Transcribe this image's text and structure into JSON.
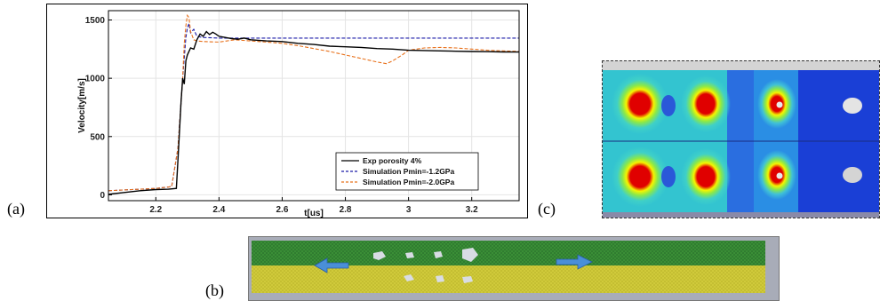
{
  "labels": {
    "a": "(a)",
    "b": "(b)",
    "c": "(c)"
  },
  "chart_data": {
    "type": "line",
    "xlabel": "t[us]",
    "ylabel": "Velocity[m/s]",
    "xlim": [
      2.05,
      3.35
    ],
    "ylim": [
      -50,
      1580
    ],
    "xticks": [
      2.2,
      2.4,
      2.6,
      2.8,
      3.0,
      3.2
    ],
    "xtick_labels": [
      "2.2",
      "2.4",
      "2.6",
      "2.8",
      "3",
      "3.2"
    ],
    "yticks": [
      0,
      500,
      1000,
      1500
    ],
    "ytick_labels": [
      "0",
      "500",
      "1000",
      "1500"
    ],
    "grid": true,
    "legend_position": "bottom-right",
    "series": [
      {
        "name": "Exp porosity 4%",
        "color": "#000000",
        "style": "solid",
        "x": [
          2.05,
          2.1,
          2.15,
          2.2,
          2.24,
          2.265,
          2.27,
          2.28,
          2.285,
          2.29,
          2.295,
          2.3,
          2.31,
          2.32,
          2.33,
          2.34,
          2.35,
          2.36,
          2.37,
          2.38,
          2.39,
          2.4,
          2.42,
          2.44,
          2.46,
          2.48,
          2.5,
          2.55,
          2.6,
          2.65,
          2.7,
          2.75,
          2.8,
          2.85,
          2.9,
          2.95,
          3.0,
          3.05,
          3.1,
          3.15,
          3.2,
          3.25,
          3.3,
          3.35
        ],
        "y": [
          5,
          20,
          35,
          45,
          48,
          55,
          300,
          800,
          1000,
          950,
          1150,
          1200,
          1260,
          1250,
          1330,
          1380,
          1360,
          1400,
          1375,
          1395,
          1380,
          1360,
          1350,
          1340,
          1335,
          1345,
          1330,
          1320,
          1315,
          1300,
          1290,
          1275,
          1270,
          1265,
          1255,
          1250,
          1240,
          1238,
          1235,
          1232,
          1230,
          1228,
          1226,
          1225
        ]
      },
      {
        "name": "Simulation Pmin=-1.2GPa",
        "color": "#1a1aa8",
        "style": "dashed",
        "x": [
          2.05,
          2.1,
          2.15,
          2.2,
          2.25,
          2.27,
          2.285,
          2.295,
          2.3,
          2.305,
          2.31,
          2.32,
          2.33,
          2.35,
          2.4,
          2.45,
          3.35
        ],
        "y": [
          35,
          42,
          48,
          55,
          70,
          400,
          1000,
          1350,
          1430,
          1470,
          1390,
          1420,
          1360,
          1350,
          1345,
          1345,
          1345
        ]
      },
      {
        "name": "Simulation Pmin=-2.0GPa",
        "color": "#e8701a",
        "style": "dashed",
        "x": [
          2.05,
          2.1,
          2.15,
          2.2,
          2.25,
          2.27,
          2.285,
          2.29,
          2.295,
          2.3,
          2.305,
          2.31,
          2.32,
          2.33,
          2.35,
          2.4,
          2.45,
          2.5,
          2.55,
          2.6,
          2.65,
          2.7,
          2.75,
          2.8,
          2.85,
          2.9,
          2.93,
          2.95,
          2.98,
          3.0,
          3.05,
          3.1,
          3.15,
          3.2,
          3.25,
          3.3,
          3.35
        ],
        "y": [
          35,
          42,
          48,
          55,
          70,
          400,
          1000,
          1300,
          1450,
          1540,
          1520,
          1400,
          1330,
          1320,
          1315,
          1310,
          1330,
          1320,
          1310,
          1300,
          1280,
          1255,
          1230,
          1200,
          1170,
          1140,
          1125,
          1150,
          1200,
          1240,
          1260,
          1265,
          1260,
          1250,
          1240,
          1235,
          1230
        ]
      }
    ]
  },
  "sim_image": {
    "colors": {
      "background": "#1a3fd6",
      "hot": "#e00000",
      "warm": "#f5f500",
      "mid": "#3fd0c8",
      "void": "#d8d8d8"
    }
  },
  "cloth_image": {
    "colors": {
      "top": "#2f7a2f",
      "bottom": "#c8c23a",
      "arrow": "#4a8fd8",
      "void": "#d8dce4"
    }
  }
}
